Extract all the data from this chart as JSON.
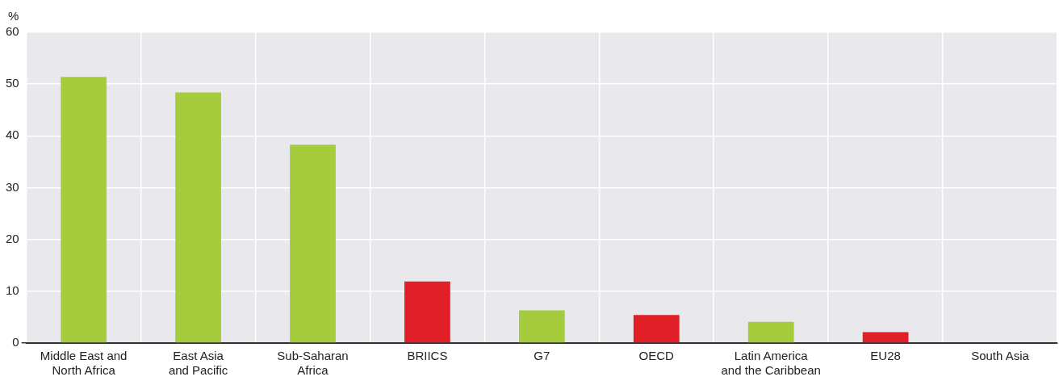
{
  "chart_data": {
    "type": "bar",
    "ylabel": "%",
    "categories": [
      "Middle East and\nNorth Africa",
      "East Asia\nand Pacific",
      "Sub-Saharan\nAfrica",
      "BRIICS",
      "G7",
      "OECD",
      "Latin America\nand the Caribbean",
      "EU28",
      "South Asia"
    ],
    "values": [
      51.4,
      48.4,
      38.3,
      11.9,
      6.3,
      5.4,
      4.1,
      2.1,
      0
    ],
    "colors": [
      "#a5cc3c",
      "#a5cc3c",
      "#a5cc3c",
      "#e01f26",
      "#a5cc3c",
      "#e01f26",
      "#a5cc3c",
      "#e01f26",
      "#a5cc3c"
    ],
    "ylim": [
      0,
      60
    ],
    "yticks": [
      0,
      10,
      20,
      30,
      40,
      50,
      60
    ],
    "grid": true,
    "legend": false
  }
}
